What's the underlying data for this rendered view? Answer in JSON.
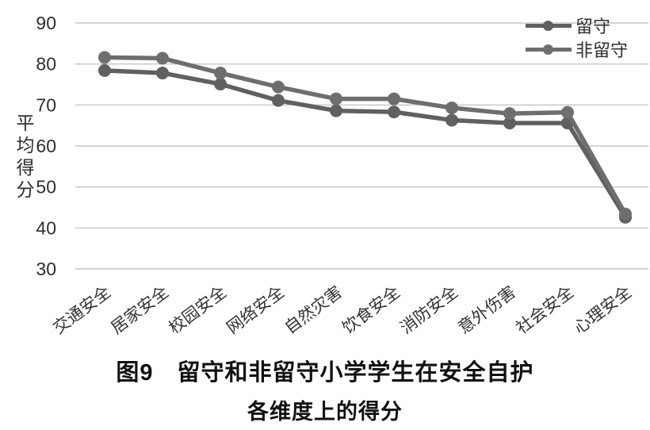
{
  "chart_data": {
    "type": "line",
    "title": "",
    "ylabel": "平均得分",
    "xlabel": "",
    "categories": [
      "交通安全",
      "居家安全",
      "校园安全",
      "网络安全",
      "自然灾害",
      "饮食安全",
      "消防安全",
      "意外伤害",
      "社会安全",
      "心理安全"
    ],
    "series": [
      {
        "name": "留守",
        "values": [
          78.4,
          77.8,
          75.1,
          71.1,
          68.6,
          68.3,
          66.3,
          65.6,
          65.6,
          42.6
        ],
        "color": "#5f6062"
      },
      {
        "name": "非留守",
        "values": [
          81.6,
          81.4,
          77.8,
          74.4,
          71.5,
          71.5,
          69.3,
          67.9,
          68.2,
          43.4
        ],
        "color": "#6d6e70"
      }
    ],
    "ylim": [
      30,
      90
    ],
    "yticks": [
      30,
      40,
      50,
      60,
      70,
      80,
      90
    ],
    "grid": "horizontal",
    "legend_position": "top-right",
    "marker": "circle"
  },
  "caption": {
    "line1": "图9　留守和非留守小学学生在安全自护",
    "line2": "各维度上的得分"
  },
  "colors": {
    "background": "#ffffff",
    "gridline": "#c6c6c6",
    "axis_tick_text": "#2e2e2e",
    "category_text": "#333333",
    "caption_text": "#111111"
  }
}
